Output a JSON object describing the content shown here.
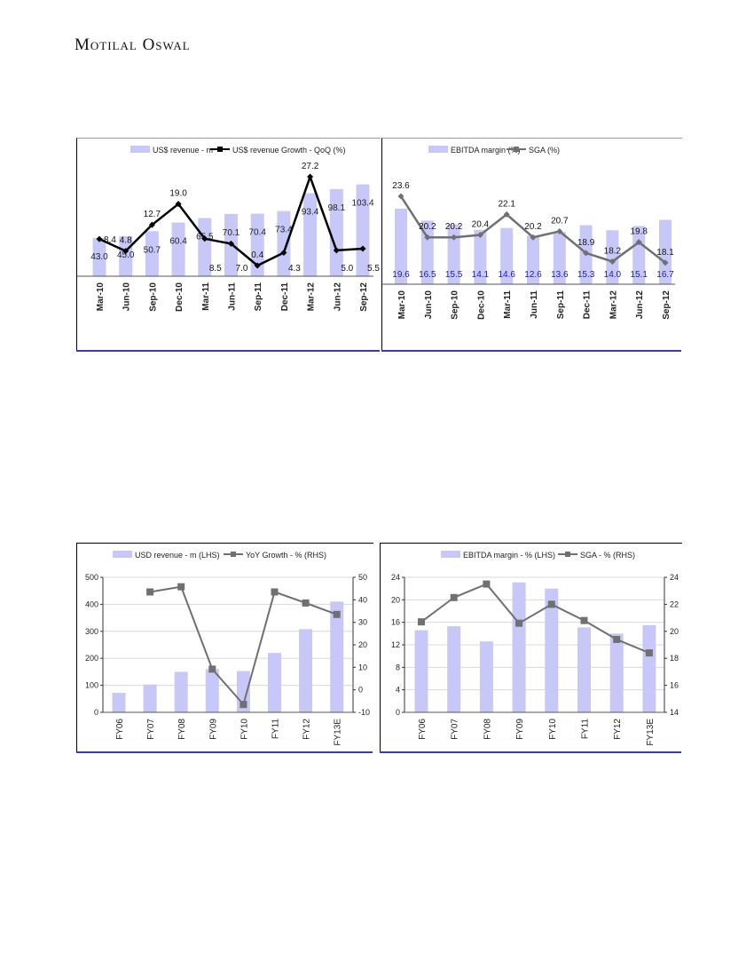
{
  "header": {
    "brand": "Motilal Oswal"
  },
  "chart_data": [
    {
      "id": "c1",
      "type": "bar+line",
      "title": "",
      "legend": [
        "US$ revenue - m",
        "US$ revenue Growth - QoQ (%)"
      ],
      "categories": [
        "Mar-10",
        "Jun-10",
        "Sep-10",
        "Dec-10",
        "Mar-11",
        "Jun-11",
        "Sep-11",
        "Dec-11",
        "Mar-12",
        "Jun-12",
        "Sep-12"
      ],
      "series": [
        {
          "name": "US$ revenue - m",
          "type": "bar",
          "values": [
            43.0,
            45.0,
            50.7,
            60.4,
            65.5,
            70.1,
            70.4,
            73.4,
            93.4,
            98.1,
            103.4
          ],
          "labels": [
            "43.0",
            "45.0",
            "50.7",
            "60.4",
            "65.5",
            "70.1",
            "70.4",
            "73.4",
            "93.4",
            "98.1",
            "103.4"
          ]
        },
        {
          "name": "US$ revenue Growth - QoQ (%)",
          "type": "line",
          "values": [
            8.4,
            4.8,
            12.7,
            19.0,
            8.5,
            7.0,
            0.4,
            4.3,
            27.2,
            5.0,
            5.5
          ],
          "labels": [
            "8.4",
            "4.8",
            "12.7",
            "19.0",
            "8.5",
            "7.0",
            "0.4",
            "4.3",
            "27.2",
            "5.0",
            "5.5"
          ]
        }
      ],
      "colors": {
        "bar": "#c8c8f8",
        "line": "#000000"
      }
    },
    {
      "id": "c2",
      "type": "bar+line",
      "title": "",
      "legend": [
        "EBITDA margin (%)",
        "SGA (%)"
      ],
      "categories": [
        "Mar-10",
        "Jun-10",
        "Sep-10",
        "Dec-10",
        "Mar-11",
        "Jun-11",
        "Sep-11",
        "Dec-11",
        "Mar-12",
        "Jun-12",
        "Sep-12"
      ],
      "series": [
        {
          "name": "EBITDA margin (%)",
          "type": "bar",
          "values": [
            19.6,
            16.5,
            15.5,
            14.1,
            14.6,
            12.6,
            13.6,
            15.3,
            14.0,
            15.1,
            16.7
          ],
          "labels": [
            "19.6",
            "16.5",
            "15.5",
            "14.1",
            "14.6",
            "12.6",
            "13.6",
            "15.3",
            "14.0",
            "15.1",
            "16.7"
          ]
        },
        {
          "name": "SGA (%)",
          "type": "line",
          "values": [
            23.6,
            20.2,
            20.2,
            20.4,
            22.1,
            20.2,
            20.7,
            18.9,
            18.2,
            19.8,
            18.1
          ],
          "labels": [
            "23.6",
            "20.2",
            "20.2",
            "20.4",
            "22.1",
            "20.2",
            "20.7",
            "18.9",
            "18.2",
            "19.8",
            "18.1"
          ]
        }
      ],
      "colors": {
        "bar": "#c8c8f8",
        "line": "#707070",
        "barlabel": "#1a1ab0"
      }
    },
    {
      "id": "c3",
      "type": "bar+line",
      "title": "",
      "legend": [
        "USD revenue - m (LHS)",
        "YoY Growth - % (RHS)"
      ],
      "categories": [
        "FY06",
        "FY07",
        "FY08",
        "FY09",
        "FY10",
        "FY11",
        "FY12",
        "FY13E"
      ],
      "ylim": [
        0,
        500
      ],
      "yticks": [
        "0",
        "100",
        "200",
        "300",
        "400",
        "500"
      ],
      "y2lim": [
        -10,
        50
      ],
      "y2ticks": [
        "-10",
        "0",
        "10",
        "20",
        "30",
        "40",
        "50"
      ],
      "series": [
        {
          "name": "USD revenue - m (LHS)",
          "type": "bar",
          "values": [
            72,
            103,
            150,
            160,
            153,
            220,
            308,
            410
          ]
        },
        {
          "name": "YoY Growth - % (RHS)",
          "type": "line",
          "values": [
            null,
            43.5,
            45.8,
            9.2,
            -6.5,
            43.5,
            38.6,
            33.5
          ]
        }
      ],
      "colors": {
        "bar": "#c8c8f8",
        "line": "#707070"
      }
    },
    {
      "id": "c4",
      "type": "bar+line",
      "title": "",
      "legend": [
        "EBITDA margin - % (LHS)",
        "SGA - % (RHS)"
      ],
      "categories": [
        "FY06",
        "FY07",
        "FY08",
        "FY09",
        "FY10",
        "FY11",
        "FY12",
        "FY13E"
      ],
      "ylim": [
        0,
        24
      ],
      "yticks": [
        "0",
        "4",
        "8",
        "12",
        "16",
        "20",
        "24"
      ],
      "y2lim": [
        14,
        24
      ],
      "y2ticks": [
        "14",
        "16",
        "18",
        "20",
        "22",
        "24"
      ],
      "series": [
        {
          "name": "EBITDA margin - % (LHS)",
          "type": "bar",
          "values": [
            14.6,
            15.3,
            12.6,
            23.1,
            22.0,
            15.1,
            14.0,
            15.5
          ]
        },
        {
          "name": "SGA - % (RHS)",
          "type": "line",
          "values": [
            20.7,
            22.5,
            23.5,
            20.6,
            22.0,
            20.8,
            19.4,
            18.4
          ]
        }
      ],
      "colors": {
        "bar": "#c8c8f8",
        "line": "#707070"
      }
    }
  ]
}
